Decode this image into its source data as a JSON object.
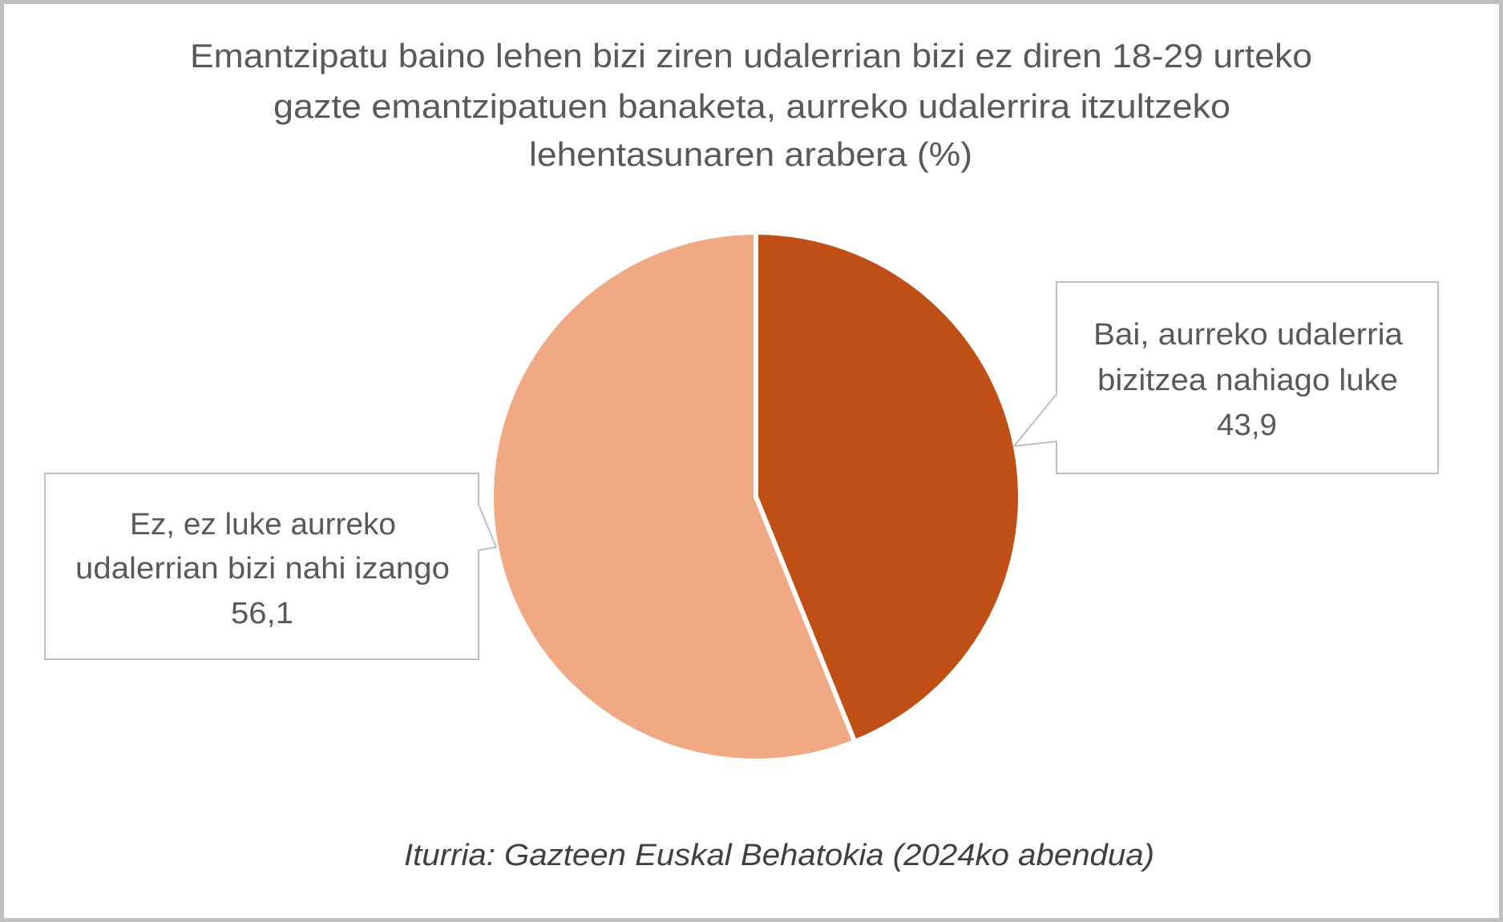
{
  "chart_data": {
    "type": "pie",
    "title": "Emantzipatu baino lehen bizi ziren udalerrian bizi ez diren 18-29 urteko gazte emantzipatuen banaketa, aurreko udalerrira itzultzeko lehentasunaren arabera (%)",
    "title_lines": [
      "Emantzipatu baino lehen bizi ziren udalerrian bizi ez diren 18-29 urteko",
      "gazte emantzipatuen banaketa, aurreko udalerrira itzultzeko",
      "lehentasunaren arabera (%)"
    ],
    "categories": [
      "Bai, aurreko udalerria bizitzea nahiago luke",
      "Ez, ez luke aurreko udalerrian bizi nahi izango"
    ],
    "values": [
      43.9,
      56.1
    ],
    "colors": [
      "#C04F15",
      "#F1A983"
    ],
    "value_labels": [
      "43,9",
      "56,1"
    ],
    "labels": [
      {
        "lines": [
          "Bai, aurreko udalerria",
          "bizitzea nahiago luke"
        ],
        "value": "43,9",
        "position": "right callout"
      },
      {
        "lines": [
          "Ez, ez luke aurreko",
          "udalerrian bizi nahi izango"
        ],
        "value": "56,1",
        "position": "left callout"
      }
    ],
    "source": "Iturria: Gazteen Euskal Behatokia (2024ko abendua)",
    "start_angle": "12 o'clock, clockwise",
    "legend": "none (data callouts)",
    "xlabel": "",
    "ylabel": ""
  },
  "colors": {
    "border": "#BFBFBF",
    "text": "#595959",
    "source_text": "#404040",
    "slice_yes": "#C04F15",
    "slice_no": "#F1A983"
  }
}
